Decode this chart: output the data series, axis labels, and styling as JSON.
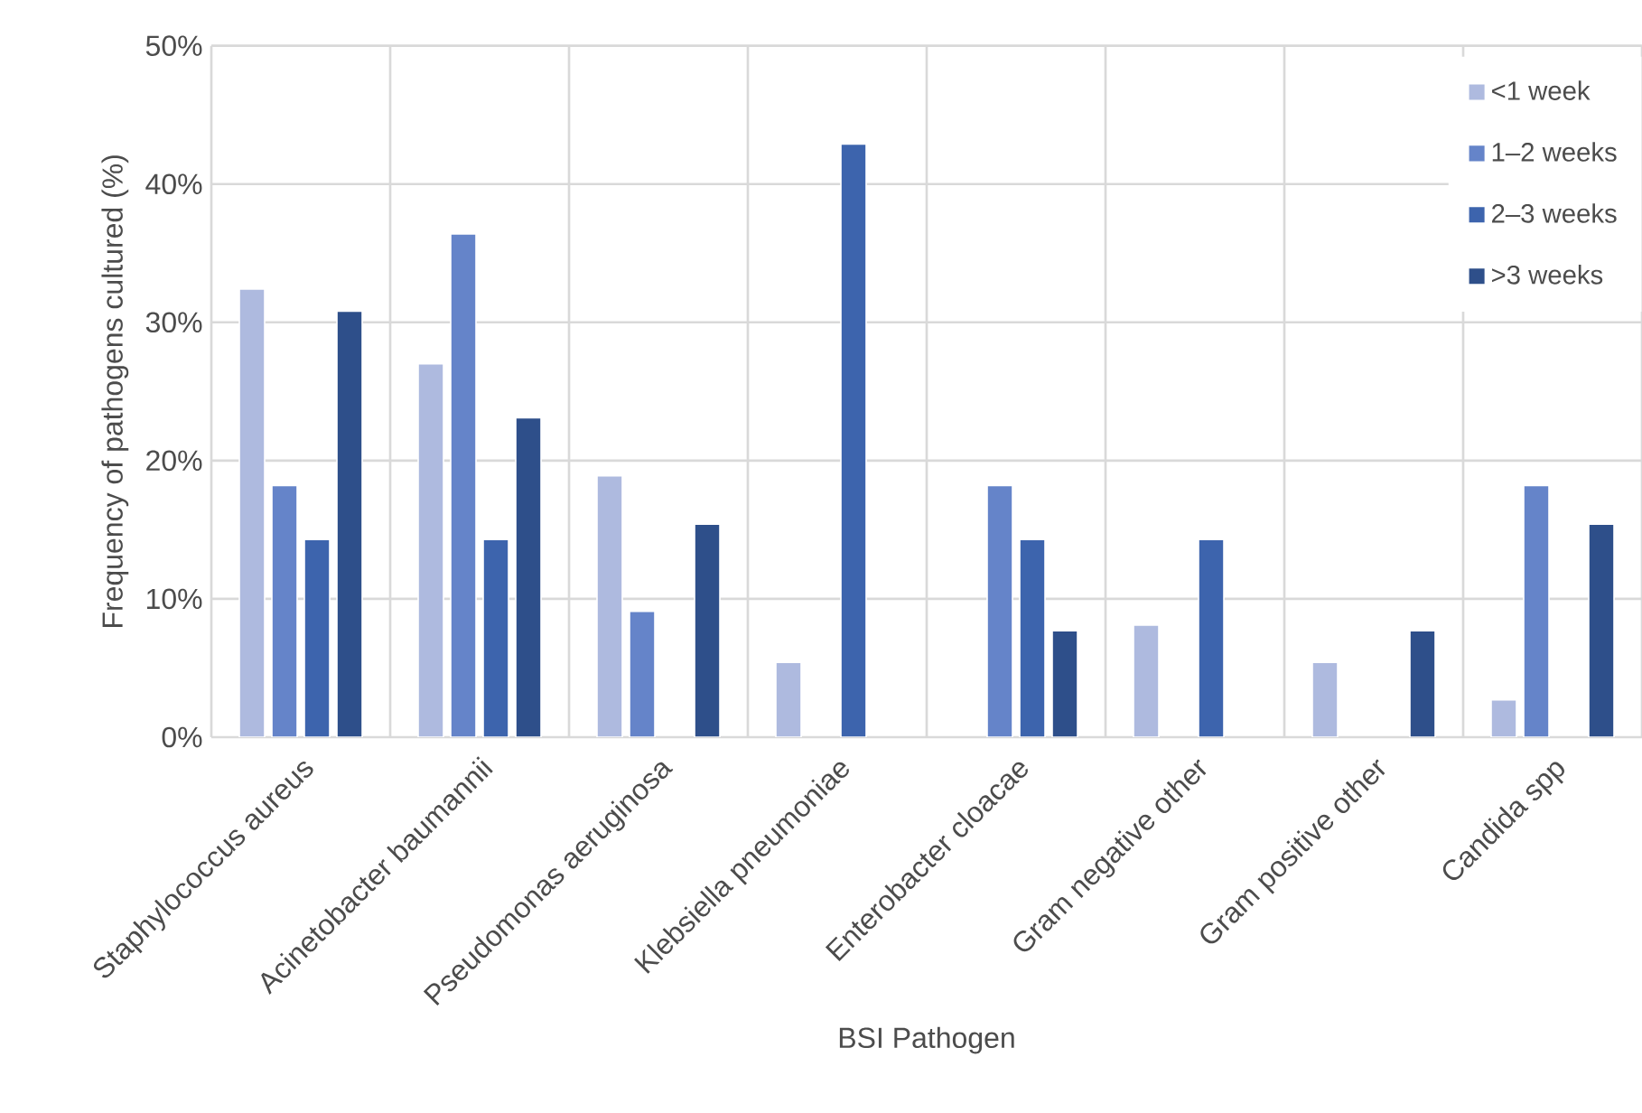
{
  "chart_data": {
    "type": "bar",
    "xlabel": "BSI Pathogen",
    "ylabel": "Frequency of pathogens cultured (%)",
    "categories": [
      "Staphylococcus aureus",
      "Acinetobacter baumannii",
      "Pseudomonas aeruginosa",
      "Klebsiella pneumoniae",
      "Enterobacter cloacae",
      "Gram negative other",
      "Gram positive other",
      "Candida spp"
    ],
    "series": [
      {
        "name": "<1 week",
        "color": "#aebadf",
        "values": [
          32.4,
          27.0,
          18.9,
          5.4,
          null,
          8.1,
          5.4,
          2.7
        ]
      },
      {
        "name": "1–2 weeks",
        "color": "#6584c9",
        "values": [
          18.2,
          36.4,
          9.1,
          null,
          18.2,
          null,
          null,
          18.2
        ]
      },
      {
        "name": "2–3 weeks",
        "color": "#3d64ad",
        "values": [
          14.3,
          14.3,
          null,
          42.9,
          14.3,
          14.3,
          null,
          null
        ]
      },
      {
        "name": ">3 weeks",
        "color": "#2e4f8a",
        "values": [
          30.8,
          23.1,
          15.4,
          null,
          7.7,
          null,
          7.7,
          15.4
        ]
      }
    ],
    "ylim": [
      0,
      50
    ],
    "yticks": [
      {
        "value": 0,
        "label": "0%"
      },
      {
        "value": 10,
        "label": "10%"
      },
      {
        "value": 20,
        "label": "20%"
      },
      {
        "value": 30,
        "label": "30%"
      },
      {
        "value": 40,
        "label": "40%"
      },
      {
        "value": 50,
        "label": "50%"
      }
    ],
    "grid": true,
    "legend": "top right"
  }
}
